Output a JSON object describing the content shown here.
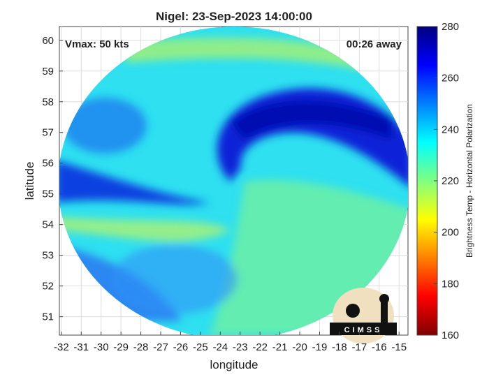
{
  "title": "Nigel: 23-Sep-2023 14:00:00",
  "annotation_left": "Vmax: 50 kts",
  "annotation_right": "00:26 away",
  "xlabel": "longitude",
  "ylabel": "latitude",
  "xlim": [
    -32.1,
    -14.55
  ],
  "xticks": [
    -32,
    -31,
    -30,
    -29,
    -28,
    -27,
    -26,
    -25,
    -24,
    -23,
    -22,
    -21,
    -20,
    -19,
    -18,
    -17,
    -16,
    -15
  ],
  "ylim": [
    50.4,
    60.45
  ],
  "yticks": [
    51,
    52,
    53,
    54,
    55,
    56,
    57,
    58,
    59,
    60
  ],
  "grid": true,
  "colorbar": {
    "label": "Brightness Temp - Horizontal Polarization",
    "lim": [
      160,
      280
    ],
    "ticks": [
      160,
      180,
      200,
      220,
      240,
      260,
      280
    ],
    "colormap": [
      "#800000",
      "#ff0000",
      "#ff8000",
      "#ffff00",
      "#80ff80",
      "#00ffff",
      "#0080ff",
      "#0000ff",
      "#000080"
    ]
  },
  "logo_text": "CIMSS"
}
